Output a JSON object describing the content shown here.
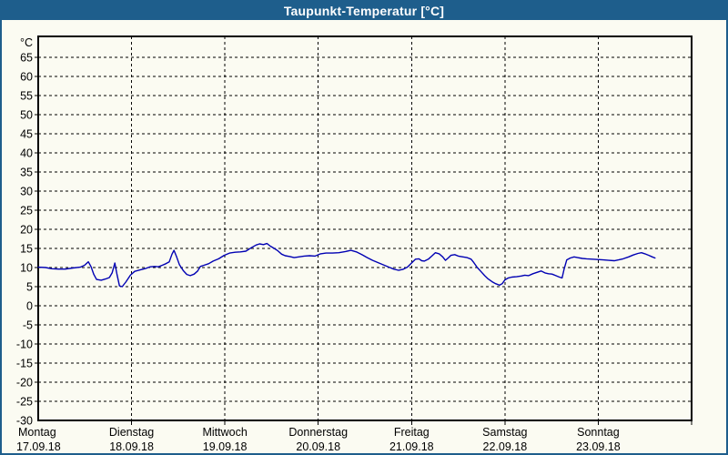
{
  "window": {
    "title": "Taupunkt-Temperatur [°C]"
  },
  "colors": {
    "titlebar": "#1e5e8c",
    "window_border": "#1e5e8c",
    "background": "#fbfbf2",
    "plot_border": "#000000",
    "grid": "#000000",
    "text": "#000000",
    "line": "#0000b3"
  },
  "chart_data": {
    "type": "line",
    "title": "Taupunkt-Temperatur [°C]",
    "ylabel": "°C",
    "xlabel": "",
    "ylim": [
      -30,
      70.5
    ],
    "ytick_step": 5,
    "yticks": [
      65,
      60,
      55,
      50,
      45,
      40,
      35,
      30,
      25,
      20,
      15,
      10,
      5,
      0,
      -5,
      -10,
      -15,
      -20,
      -25,
      -30
    ],
    "grid": "dashed",
    "legend": "none",
    "hours_total": 168,
    "x_days": [
      {
        "name": "Montag",
        "date": "17.09.18"
      },
      {
        "name": "Dienstag",
        "date": "18.09.18"
      },
      {
        "name": "Mittwoch",
        "date": "19.09.18"
      },
      {
        "name": "Donnerstag",
        "date": "20.09.18"
      },
      {
        "name": "Freitag",
        "date": "21.09.18"
      },
      {
        "name": "Samstag",
        "date": "22.09.18"
      },
      {
        "name": "Sonntag",
        "date": "23.09.18"
      }
    ],
    "series": [
      {
        "name": "Taupunkt-Temperatur",
        "unit": "°C",
        "points": [
          [
            0,
            10.1
          ],
          [
            1.9,
            10.0
          ],
          [
            3.5,
            9.7
          ],
          [
            5.2,
            9.6
          ],
          [
            7.0,
            9.6
          ],
          [
            8.9,
            9.9
          ],
          [
            10.8,
            10.1
          ],
          [
            11.9,
            10.6
          ],
          [
            12.9,
            11.5
          ],
          [
            13.6,
            10.2
          ],
          [
            14.3,
            8.2
          ],
          [
            15.0,
            6.9
          ],
          [
            16.2,
            6.7
          ],
          [
            17.3,
            7.0
          ],
          [
            18.3,
            7.4
          ],
          [
            19.0,
            8.6
          ],
          [
            19.7,
            11.2
          ],
          [
            20.2,
            8.5
          ],
          [
            20.9,
            5.2
          ],
          [
            21.6,
            5.0
          ],
          [
            22.5,
            6.2
          ],
          [
            23.7,
            8.0
          ],
          [
            24.8,
            9.0
          ],
          [
            26.2,
            9.4
          ],
          [
            27.7,
            9.8
          ],
          [
            28.8,
            10.2
          ],
          [
            30.0,
            10.3
          ],
          [
            30.9,
            10.2
          ],
          [
            31.9,
            10.6
          ],
          [
            32.8,
            11.0
          ],
          [
            33.7,
            11.5
          ],
          [
            34.4,
            13.5
          ],
          [
            34.9,
            14.5
          ],
          [
            35.6,
            12.8
          ],
          [
            36.3,
            10.8
          ],
          [
            37.3,
            9.2
          ],
          [
            38.2,
            8.2
          ],
          [
            39.1,
            7.9
          ],
          [
            40.1,
            8.3
          ],
          [
            41.0,
            9.1
          ],
          [
            41.7,
            10.3
          ],
          [
            42.6,
            10.6
          ],
          [
            43.8,
            11.0
          ],
          [
            45.0,
            11.7
          ],
          [
            46.4,
            12.3
          ],
          [
            47.8,
            13.2
          ],
          [
            49.2,
            13.8
          ],
          [
            50.6,
            14.0
          ],
          [
            52.0,
            14.1
          ],
          [
            53.4,
            14.3
          ],
          [
            54.8,
            15.2
          ],
          [
            56.0,
            15.9
          ],
          [
            56.9,
            16.2
          ],
          [
            57.9,
            16.0
          ],
          [
            58.8,
            16.3
          ],
          [
            59.7,
            15.6
          ],
          [
            60.7,
            15.0
          ],
          [
            61.6,
            14.4
          ],
          [
            62.6,
            13.5
          ],
          [
            63.5,
            13.1
          ],
          [
            64.7,
            12.9
          ],
          [
            65.8,
            12.6
          ],
          [
            67.0,
            12.8
          ],
          [
            68.4,
            13.0
          ],
          [
            69.8,
            13.1
          ],
          [
            71.2,
            13.0
          ],
          [
            72.6,
            13.6
          ],
          [
            74.0,
            13.8
          ],
          [
            75.7,
            13.8
          ],
          [
            77.3,
            13.9
          ],
          [
            79.0,
            14.2
          ],
          [
            80.4,
            14.5
          ],
          [
            81.8,
            14.1
          ],
          [
            83.2,
            13.4
          ],
          [
            84.6,
            12.6
          ],
          [
            86.0,
            11.9
          ],
          [
            87.4,
            11.3
          ],
          [
            88.8,
            10.7
          ],
          [
            90.2,
            10.1
          ],
          [
            91.4,
            9.6
          ],
          [
            92.6,
            9.3
          ],
          [
            93.7,
            9.5
          ],
          [
            94.9,
            10.1
          ],
          [
            96.0,
            11.2
          ],
          [
            97.0,
            12.2
          ],
          [
            97.9,
            12.3
          ],
          [
            98.6,
            11.8
          ],
          [
            99.3,
            11.7
          ],
          [
            100.3,
            12.2
          ],
          [
            101.2,
            13.0
          ],
          [
            102.1,
            13.9
          ],
          [
            103.1,
            13.6
          ],
          [
            104.0,
            12.8
          ],
          [
            104.7,
            11.9
          ],
          [
            105.4,
            12.5
          ],
          [
            106.1,
            13.2
          ],
          [
            107.1,
            13.4
          ],
          [
            108.0,
            13.0
          ],
          [
            109.2,
            12.8
          ],
          [
            110.3,
            12.6
          ],
          [
            111.3,
            12.2
          ],
          [
            112.0,
            11.3
          ],
          [
            112.9,
            10.0
          ],
          [
            113.9,
            8.9
          ],
          [
            114.8,
            7.9
          ],
          [
            115.7,
            7.0
          ],
          [
            116.7,
            6.3
          ],
          [
            117.6,
            5.8
          ],
          [
            118.6,
            5.4
          ],
          [
            119.3,
            5.8
          ],
          [
            120.0,
            6.8
          ],
          [
            120.9,
            7.3
          ],
          [
            121.8,
            7.5
          ],
          [
            123.0,
            7.6
          ],
          [
            124.2,
            7.8
          ],
          [
            125.1,
            8.0
          ],
          [
            126.1,
            7.9
          ],
          [
            127.2,
            8.4
          ],
          [
            128.4,
            8.8
          ],
          [
            129.3,
            9.1
          ],
          [
            130.3,
            8.6
          ],
          [
            131.2,
            8.4
          ],
          [
            132.1,
            8.3
          ],
          [
            133.1,
            7.9
          ],
          [
            134.0,
            7.5
          ],
          [
            134.7,
            7.3
          ],
          [
            135.2,
            9.5
          ],
          [
            135.9,
            12.0
          ],
          [
            136.8,
            12.5
          ],
          [
            137.8,
            12.8
          ],
          [
            138.7,
            12.6
          ],
          [
            139.9,
            12.4
          ],
          [
            141.0,
            12.3
          ],
          [
            142.5,
            12.2
          ],
          [
            143.9,
            12.1
          ],
          [
            145.3,
            12.0
          ],
          [
            146.7,
            11.9
          ],
          [
            148.1,
            11.8
          ],
          [
            149.2,
            12.0
          ],
          [
            150.4,
            12.3
          ],
          [
            151.8,
            12.8
          ],
          [
            153.0,
            13.3
          ],
          [
            154.2,
            13.7
          ],
          [
            155.1,
            13.9
          ],
          [
            156.0,
            13.6
          ],
          [
            157.0,
            13.2
          ],
          [
            157.9,
            12.8
          ],
          [
            158.6,
            12.5
          ]
        ]
      }
    ]
  }
}
